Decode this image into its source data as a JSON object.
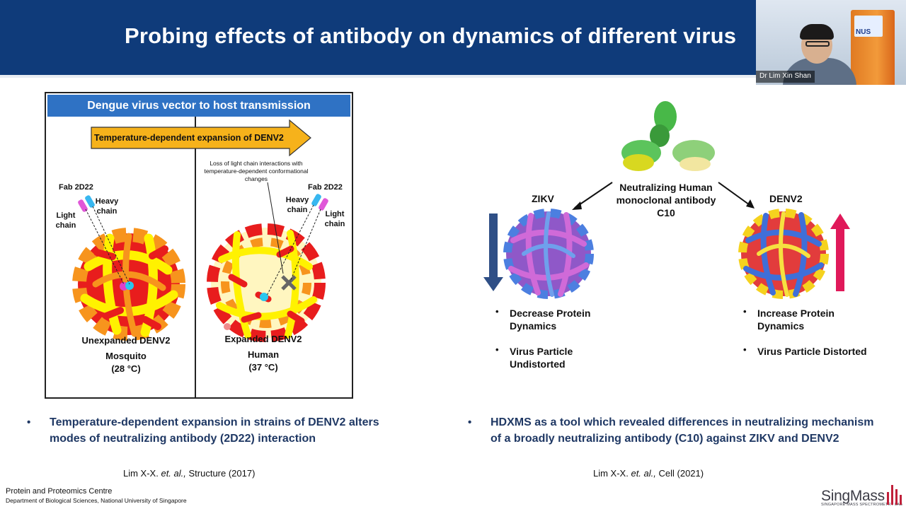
{
  "slide": {
    "title": "Probing effects of antibody on dynamics of different virus"
  },
  "video": {
    "speaker_name": "Dr Lim Xin Shan",
    "background_sign": "NUS"
  },
  "left_figure": {
    "header": "Dengue virus vector to host transmission",
    "arrow_label": "Temperature-dependent expansion of DENV2",
    "loss_note": "Loss of light chain interactions with temperature-dependent conformational changes",
    "left_panel": {
      "fab_label": "Fab 2D22",
      "heavy_chain": "Heavy chain",
      "light_chain": "Light chain",
      "state": "Unexpanded DENV2",
      "host": "Mosquito",
      "temp": "(28 °C)"
    },
    "right_panel": {
      "fab_label": "Fab 2D22",
      "heavy_chain": "Heavy chain",
      "light_chain": "Light chain",
      "state": "Expanded DENV2",
      "host": "Human",
      "temp": "(37 °C)"
    }
  },
  "right_figure": {
    "antibody_label": "Neutralizing Human monoclonal antibody C10",
    "zikv": {
      "label": "ZIKV",
      "bullet_1": "Decrease Protein Dynamics",
      "bullet_2": "Virus Particle Undistorted"
    },
    "denv2": {
      "label": "DENV2",
      "bullet_1": "Increase Protein Dynamics",
      "bullet_2": "Virus Particle Distorted"
    },
    "colors": {
      "down_arrow": "#2f4f86",
      "up_arrow": "#e0195a"
    }
  },
  "bullets": {
    "left": "Temperature-dependent expansion in strains of DENV2 alters modes of neutralizing antibody (2D22) interaction",
    "right": "HDXMS as a tool which revealed differences in neutralizing mechanism of a broadly neutralizing antibody (C10) against ZIKV and DENV2"
  },
  "references": {
    "left": {
      "authors": "Lim X-X. ",
      "etal": "et. al.,",
      "journal": " Structure (2017)"
    },
    "right": {
      "authors": "Lim X-X. ",
      "etal": "et. al.,",
      "journal": " Cell (2021)"
    }
  },
  "footer": {
    "centre": "Protein and Proteomics Centre",
    "department": "Department of Biological Sciences, National University of Singapore",
    "logo": "SingMass",
    "logo_sub": "SINGAPORE MASS SPECTROMETRY LAB"
  },
  "theme": {
    "title_bar": "#0f3b7a",
    "text_navy": "#1f3864",
    "header_blue": "#2f72c4"
  }
}
